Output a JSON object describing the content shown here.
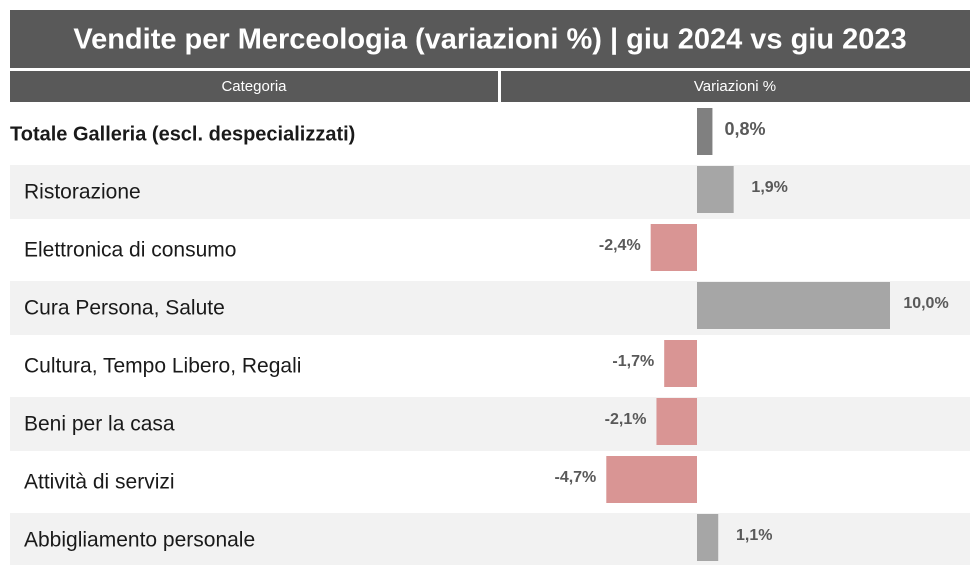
{
  "chart_data": {
    "type": "bar",
    "orientation": "horizontal",
    "title": "Vendite per Merceologia (variazioni %) | giu 2024 vs giu 2023",
    "column_headers": [
      "Categoria",
      "Variazioni %"
    ],
    "categories": [
      "Totale Galleria (escl. despecializzati)",
      "Ristorazione",
      "Elettronica di consumo",
      "Cura Persona, Salute",
      "Cultura, Tempo Libero, Regali",
      "Beni per la casa",
      "Attività di servizi",
      "Abbigliamento personale"
    ],
    "values": [
      0.8,
      1.9,
      -2.4,
      10.0,
      -1.7,
      -2.1,
      -4.7,
      1.1
    ],
    "value_labels": [
      "0,8%",
      "1,9%",
      "-2,4%",
      "10,0%",
      "-1,7%",
      "-2,1%",
      "-4,7%",
      "1,1%"
    ],
    "colors": [
      "#808080",
      "#a6a6a6",
      "#d99594",
      "#a6a6a6",
      "#d99594",
      "#d99594",
      "#d99594",
      "#a6a6a6"
    ]
  }
}
